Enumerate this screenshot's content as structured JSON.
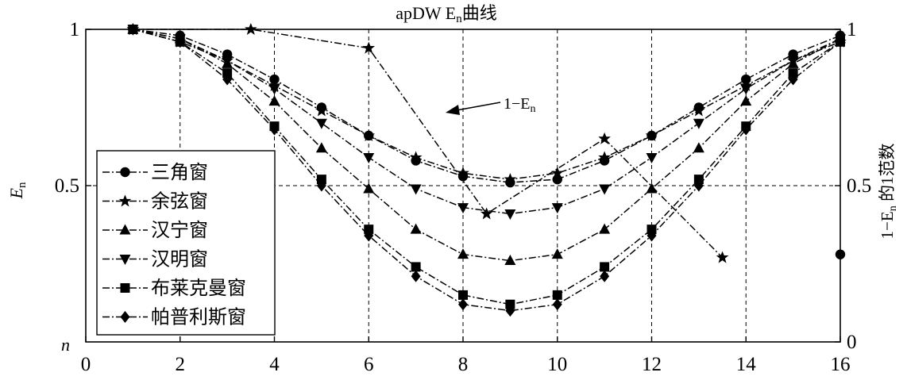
{
  "chart_data": {
    "type": "line",
    "title": "apDW E",
    "title_sub": "n",
    "title_suffix": "曲线",
    "ylabel_left": "E",
    "ylabel_left_sub": "n",
    "ylabel_right_prefix": "1−E",
    "ylabel_right_sub": "n",
    "ylabel_right_suffix": " 的1范数",
    "corner_label": "n",
    "xlim": [
      0,
      16
    ],
    "ylim": [
      0,
      1
    ],
    "x_ticks": [
      "0",
      "2",
      "4",
      "6",
      "8",
      "10",
      "12",
      "14",
      "16"
    ],
    "y_ticks_left": [
      "1",
      "0.5"
    ],
    "y_ticks_right": [
      "1",
      "0.5",
      "0"
    ],
    "grid": "dashed",
    "legend_position": "left",
    "annotation": {
      "prefix": "1−E",
      "sub": "n",
      "x": 8,
      "y": 0.77
    },
    "series": [
      {
        "name": "三角窗",
        "marker": "circle",
        "x": [
          1,
          2,
          3,
          4,
          5,
          6,
          7,
          8,
          9,
          10,
          11,
          12,
          13,
          14,
          15,
          16
        ],
        "y": [
          1.0,
          0.98,
          0.92,
          0.84,
          0.75,
          0.66,
          0.58,
          0.53,
          0.51,
          0.52,
          0.58,
          0.66,
          0.75,
          0.84,
          0.92,
          0.98
        ]
      },
      {
        "name": "余弦窗",
        "marker": "star",
        "x": [
          1,
          2,
          3,
          4,
          5,
          6,
          7,
          8,
          9,
          10,
          11,
          12,
          13,
          14,
          15,
          16
        ],
        "y": [
          1.0,
          0.96,
          0.9,
          0.82,
          0.74,
          0.66,
          0.59,
          0.54,
          0.52,
          0.54,
          0.59,
          0.66,
          0.74,
          0.82,
          0.9,
          0.96
        ]
      },
      {
        "name": "汉宁窗",
        "marker": "triangle-up",
        "x": [
          1,
          2,
          3,
          4,
          5,
          6,
          7,
          8,
          9,
          10,
          11,
          12,
          13,
          14,
          15,
          16
        ],
        "y": [
          1.0,
          0.97,
          0.89,
          0.77,
          0.62,
          0.49,
          0.36,
          0.28,
          0.26,
          0.28,
          0.36,
          0.49,
          0.62,
          0.77,
          0.89,
          0.97
        ]
      },
      {
        "name": "汉明窗",
        "marker": "triangle-down",
        "x": [
          1,
          2,
          3,
          4,
          5,
          6,
          7,
          8,
          9,
          10,
          11,
          12,
          13,
          14,
          15,
          16
        ],
        "y": [
          1.0,
          0.97,
          0.9,
          0.81,
          0.7,
          0.59,
          0.49,
          0.43,
          0.41,
          0.43,
          0.49,
          0.59,
          0.7,
          0.81,
          0.9,
          0.97
        ]
      },
      {
        "name": "布莱克曼窗",
        "marker": "square",
        "x": [
          1,
          2,
          3,
          4,
          5,
          6,
          7,
          8,
          9,
          10,
          11,
          12,
          13,
          14,
          15,
          16
        ],
        "y": [
          1.0,
          0.96,
          0.86,
          0.69,
          0.52,
          0.36,
          0.24,
          0.15,
          0.12,
          0.15,
          0.24,
          0.36,
          0.52,
          0.69,
          0.86,
          0.96
        ]
      },
      {
        "name": "帕普利斯窗",
        "marker": "diamond",
        "x": [
          1,
          2,
          3,
          4,
          5,
          6,
          7,
          8,
          9,
          10,
          11,
          12,
          13,
          14,
          15,
          16
        ],
        "y": [
          1.0,
          0.96,
          0.84,
          0.68,
          0.5,
          0.34,
          0.21,
          0.12,
          0.1,
          0.12,
          0.21,
          0.34,
          0.5,
          0.68,
          0.84,
          0.96
        ]
      }
    ],
    "norm_series": [
      {
        "marker": "star",
        "x": [
          1,
          3.5,
          6,
          8.5,
          11,
          13.5
        ],
        "y": [
          1.0,
          1.0,
          0.94,
          0.41,
          0.65,
          0.27
        ]
      },
      {
        "marker": "circle",
        "x": [
          16
        ],
        "y": [
          0.28
        ]
      }
    ]
  }
}
